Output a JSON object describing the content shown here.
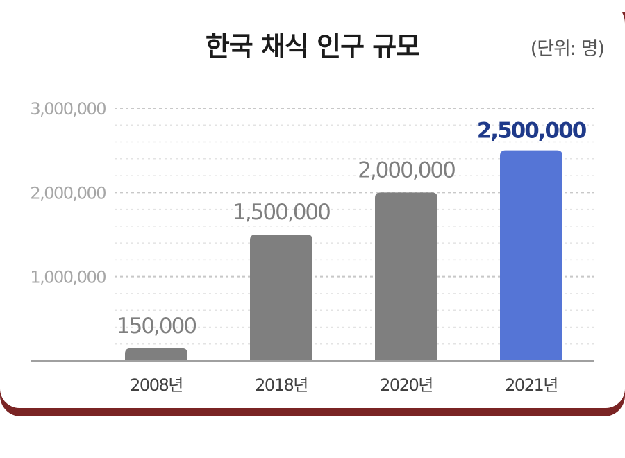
{
  "title": "한국 채식 인구 규모",
  "unit_label": "(단위: 명)",
  "colors": {
    "bar_default": "#7f7f7f",
    "bar_highlight": "#5575d6",
    "highlight_label": "#1f3a8a",
    "value_label": "#7f7f7f",
    "tick_label": "#a6a6a6",
    "card_border": "#7a2424"
  },
  "chart_data": {
    "type": "bar",
    "title": "한국 채식 인구 규모",
    "unit": "(단위: 명)",
    "categories": [
      "2008년",
      "2018년",
      "2020년",
      "2021년"
    ],
    "values": [
      150000,
      1500000,
      2000000,
      2500000
    ],
    "value_labels": [
      "150,000",
      "1,500,000",
      "2,000,000",
      "2,500,000"
    ],
    "highlight_index": 3,
    "ylim": [
      0,
      3000000
    ],
    "yticks": [
      1000000,
      2000000,
      3000000
    ],
    "ytick_labels": [
      "1,000,000",
      "2,000,000",
      "3,000,000"
    ],
    "grid": true,
    "legend": "none"
  }
}
